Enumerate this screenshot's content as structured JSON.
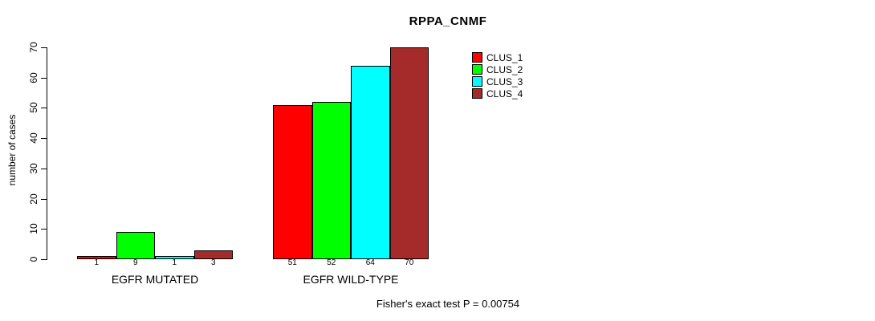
{
  "title": "RPPA_CNMF",
  "ylabel": "number of cases",
  "footer": "Fisher's exact test P = 0.00754",
  "legend": [
    {
      "label": "CLUS_1",
      "color": "#FF0000"
    },
    {
      "label": "CLUS_2",
      "color": "#00FF00"
    },
    {
      "label": "CLUS_3",
      "color": "#00FFFF"
    },
    {
      "label": "CLUS_4",
      "color": "#A52A2A"
    }
  ],
  "chart_data": {
    "type": "bar",
    "title": "RPPA_CNMF",
    "ylabel": "number of cases",
    "xlabel": "",
    "ylim": [
      0,
      70
    ],
    "yticks": [
      0,
      10,
      20,
      30,
      40,
      50,
      60,
      70
    ],
    "grid": false,
    "legend_position": "right",
    "categories": [
      "EGFR MUTATED",
      "EGFR WILD-TYPE"
    ],
    "series": [
      {
        "name": "CLUS_1",
        "color": "#FF0000",
        "values": [
          1,
          51
        ]
      },
      {
        "name": "CLUS_2",
        "color": "#00FF00",
        "values": [
          9,
          52
        ]
      },
      {
        "name": "CLUS_3",
        "color": "#00FFFF",
        "values": [
          1,
          64
        ]
      },
      {
        "name": "CLUS_4",
        "color": "#A52A2A",
        "values": [
          3,
          70
        ]
      }
    ],
    "bar_labels": [
      [
        1,
        9,
        1,
        3
      ],
      [
        51,
        52,
        64,
        70
      ]
    ],
    "annotation": "Fisher's exact test P = 0.00754"
  }
}
